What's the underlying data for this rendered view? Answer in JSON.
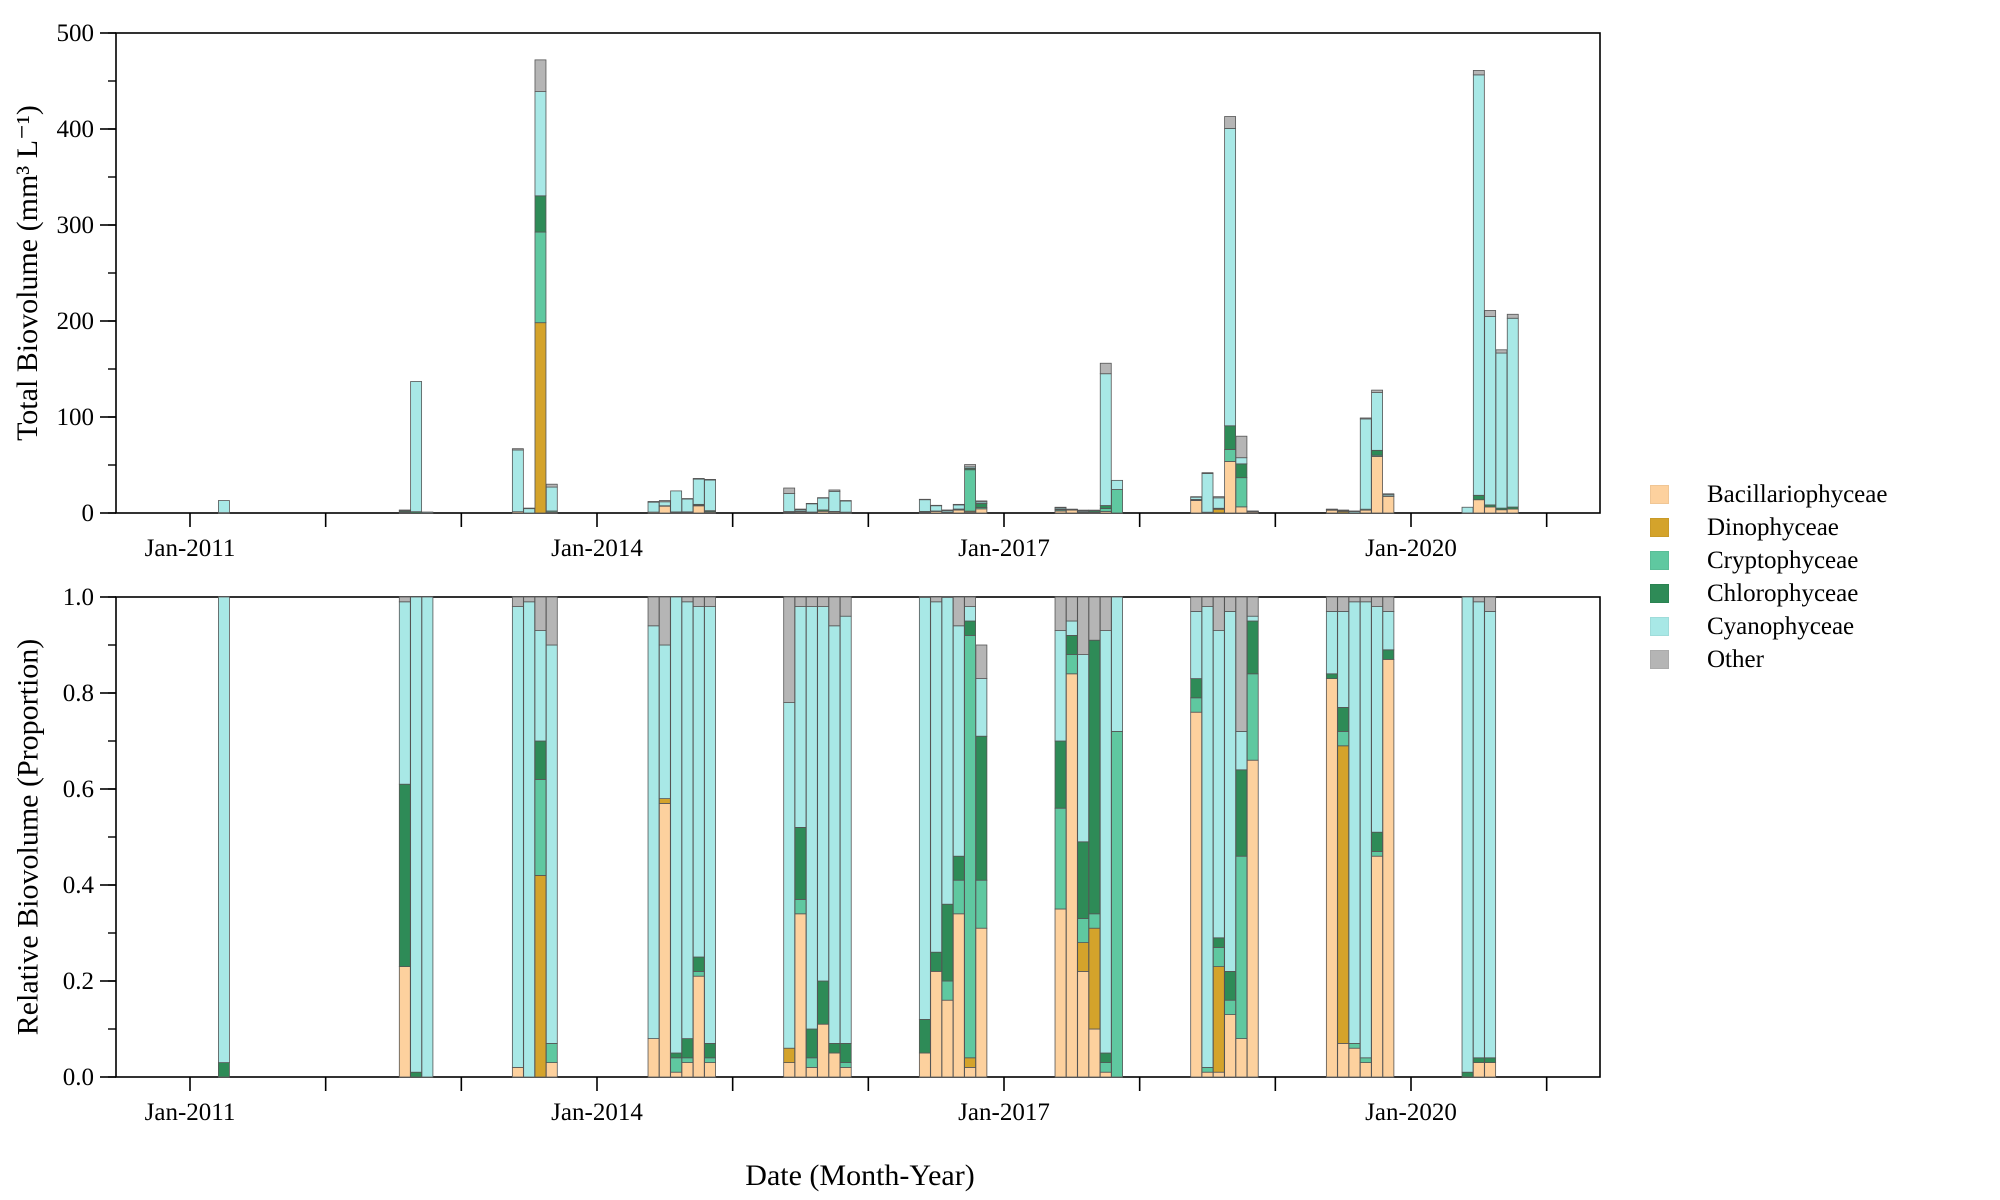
{
  "chart_data": [
    {
      "type": "bar",
      "stacked": true,
      "ylabel": "Total Biovolume (mm³ L⁻¹)",
      "ylim": [
        0,
        500
      ],
      "yticks": [
        "0",
        "100",
        "200",
        "300",
        "400",
        "500"
      ],
      "x_tick_labels": [
        "Jan-2011",
        "Jan-2014",
        "Jan-2017",
        "Jan-2020"
      ],
      "dates": [
        "2011-04",
        "2012-08",
        "2012-09",
        "2012-10",
        "2013-06",
        "2013-07",
        "2013-08",
        "2013-09",
        "2014-06",
        "2014-07",
        "2014-08",
        "2014-09",
        "2014-10",
        "2014-11",
        "2015-06",
        "2015-07",
        "2015-08",
        "2015-09",
        "2015-10",
        "2015-11",
        "2016-06",
        "2016-07",
        "2016-08",
        "2016-09",
        "2016-10",
        "2016-11",
        "2017-06",
        "2017-07",
        "2017-08",
        "2017-09",
        "2017-10",
        "2017-11",
        "2018-06",
        "2018-07",
        "2018-08",
        "2018-09",
        "2018-10",
        "2018-11",
        "2019-06",
        "2019-07",
        "2019-08",
        "2019-09",
        "2019-10",
        "2019-11",
        "2020-06",
        "2020-07",
        "2020-08",
        "2020-09",
        "2020-10"
      ],
      "values": [
        13,
        3,
        137,
        1,
        67,
        5,
        472,
        30,
        12,
        13,
        23,
        15,
        36,
        35,
        26,
        4,
        10,
        16,
        24,
        13,
        14,
        8,
        3,
        9,
        49,
        14,
        6,
        4,
        3,
        3,
        156,
        34,
        17,
        42,
        17,
        413,
        80,
        2,
        4,
        3,
        2,
        99,
        128,
        20,
        6,
        461,
        211,
        170,
        207
      ]
    },
    {
      "type": "bar",
      "stacked": true,
      "xlabel": "Date (Month-Year)",
      "ylabel": "Relative Biovolume (Proportion)",
      "ylim": [
        0,
        1
      ],
      "yticks": [
        "0.0",
        "0.2",
        "0.4",
        "0.6",
        "0.8",
        "1.0"
      ],
      "x_tick_labels": [
        "Jan-2011",
        "Jan-2014",
        "Jan-2017",
        "Jan-2020"
      ],
      "legend_position": "right",
      "series": [
        {
          "name": "Bacillariophyceae",
          "color": "#fdd19e",
          "values": [
            0,
            0.23,
            0,
            0,
            0.02,
            0,
            0,
            0.03,
            0.08,
            0.57,
            0.01,
            0.03,
            0.21,
            0.03,
            0.03,
            0.34,
            0.02,
            0.11,
            0.05,
            0.02,
            0.05,
            0.22,
            0.16,
            0.34,
            0.02,
            0.31,
            0.35,
            0.84,
            0.22,
            0.1,
            0.01,
            0,
            0.76,
            0.01,
            0.01,
            0.13,
            0.08,
            0.66,
            0.83,
            0.07,
            0.06,
            0.03,
            0.46,
            0.87,
            0,
            0.03,
            0.03
          ]
        },
        {
          "name": "Dinophyceae",
          "color": "#d4a32b",
          "values": [
            0,
            0,
            0,
            0,
            0,
            0,
            0.42,
            0,
            0,
            0.01,
            0,
            0,
            0,
            0,
            0.03,
            0,
            0,
            0,
            0,
            0,
            0,
            0,
            0,
            0,
            0.02,
            0,
            0,
            0,
            0.06,
            0.21,
            0,
            0,
            0,
            0,
            0.22,
            0,
            0,
            0,
            0,
            0.62,
            0,
            0,
            0,
            0,
            0,
            0,
            0
          ]
        },
        {
          "name": "Cryptophyceae",
          "color": "#5fc8a0",
          "values": [
            0,
            0,
            0,
            0,
            0,
            0,
            0.2,
            0.04,
            0,
            0,
            0.03,
            0.01,
            0.01,
            0.01,
            0,
            0.03,
            0.02,
            0,
            0,
            0.01,
            0,
            0,
            0.04,
            0.07,
            0.88,
            0.1,
            0.21,
            0.04,
            0.05,
            0.03,
            0.02,
            0.72,
            0.03,
            0.01,
            0.04,
            0.03,
            0.38,
            0.18,
            0,
            0.03,
            0.01,
            0.01,
            0.01,
            0,
            0,
            0,
            0
          ]
        },
        {
          "name": "Chlorophyceae",
          "color": "#2e8b57",
          "values": [
            0.03,
            0.38,
            0.01,
            0,
            0,
            0,
            0.08,
            0,
            0,
            0,
            0.01,
            0.04,
            0.03,
            0.03,
            0,
            0.15,
            0.06,
            0.09,
            0.02,
            0.04,
            0.07,
            0.04,
            0.16,
            0.05,
            0.03,
            0.3,
            0.14,
            0.04,
            0.16,
            0.57,
            0.02,
            0,
            0.04,
            0,
            0.02,
            0.06,
            0.18,
            0.11,
            0.01,
            0.05,
            0,
            0,
            0.04,
            0.02,
            0.01,
            0.01,
            0.01
          ]
        },
        {
          "name": "Cyanophyceae",
          "color": "#a8e8e6",
          "values": [
            0.97,
            0.38,
            0.99,
            1,
            0.96,
            0.99,
            0.23,
            0.83,
            0.86,
            0.32,
            0.95,
            0.91,
            0.73,
            0.91,
            0.72,
            0.46,
            0.88,
            0.78,
            0.87,
            0.89,
            0.88,
            0.73,
            0.64,
            0.48,
            0.03,
            0.12,
            0.23,
            0.03,
            0.39,
            0,
            0.88,
            0.28,
            0.14,
            0.96,
            0.64,
            0.75,
            0.08,
            0.01,
            0.13,
            0.2,
            0.92,
            0.95,
            0.47,
            0.08,
            0.99,
            0.95,
            0.93
          ]
        },
        {
          "name": "Other",
          "color": "#b5b5b5",
          "values": [
            0,
            0.01,
            0,
            0,
            0.02,
            0.01,
            0.07,
            0.1,
            0.06,
            0.1,
            0,
            0.01,
            0.02,
            0.02,
            0.22,
            0.02,
            0.02,
            0.02,
            0.06,
            0.04,
            0.02,
            0.01,
            0.01,
            0.06,
            0.05,
            0.07,
            0.07,
            0.05,
            0.12,
            0.09,
            0.07,
            0,
            0.03,
            0.02,
            0.07,
            0.03,
            0.28,
            0.04,
            0.03,
            0.03,
            0.01,
            0.01,
            0.02,
            0.03,
            0,
            0.01,
            0.03
          ]
        }
      ],
      "dates": [
        "2011-04",
        "2012-08",
        "2012-09",
        "2012-10",
        "2013-06",
        "2013-07",
        "2013-08",
        "2013-09",
        "2014-06",
        "2014-07",
        "2014-08",
        "2014-09",
        "2014-10",
        "2014-11",
        "2015-06",
        "2015-07",
        "2015-08",
        "2015-09",
        "2015-10",
        "2015-11",
        "2016-06",
        "2016-07",
        "2016-08",
        "2016-09",
        "2016-10",
        "2016-11",
        "2017-06",
        "2017-07",
        "2017-08",
        "2017-09",
        "2017-10",
        "2017-11",
        "2018-06",
        "2018-07",
        "2018-08",
        "2018-09",
        "2018-10",
        "2018-11",
        "2019-06",
        "2019-07",
        "2019-08",
        "2019-09",
        "2019-10",
        "2019-11",
        "2020-06",
        "2020-07",
        "2020-08"
      ]
    }
  ]
}
